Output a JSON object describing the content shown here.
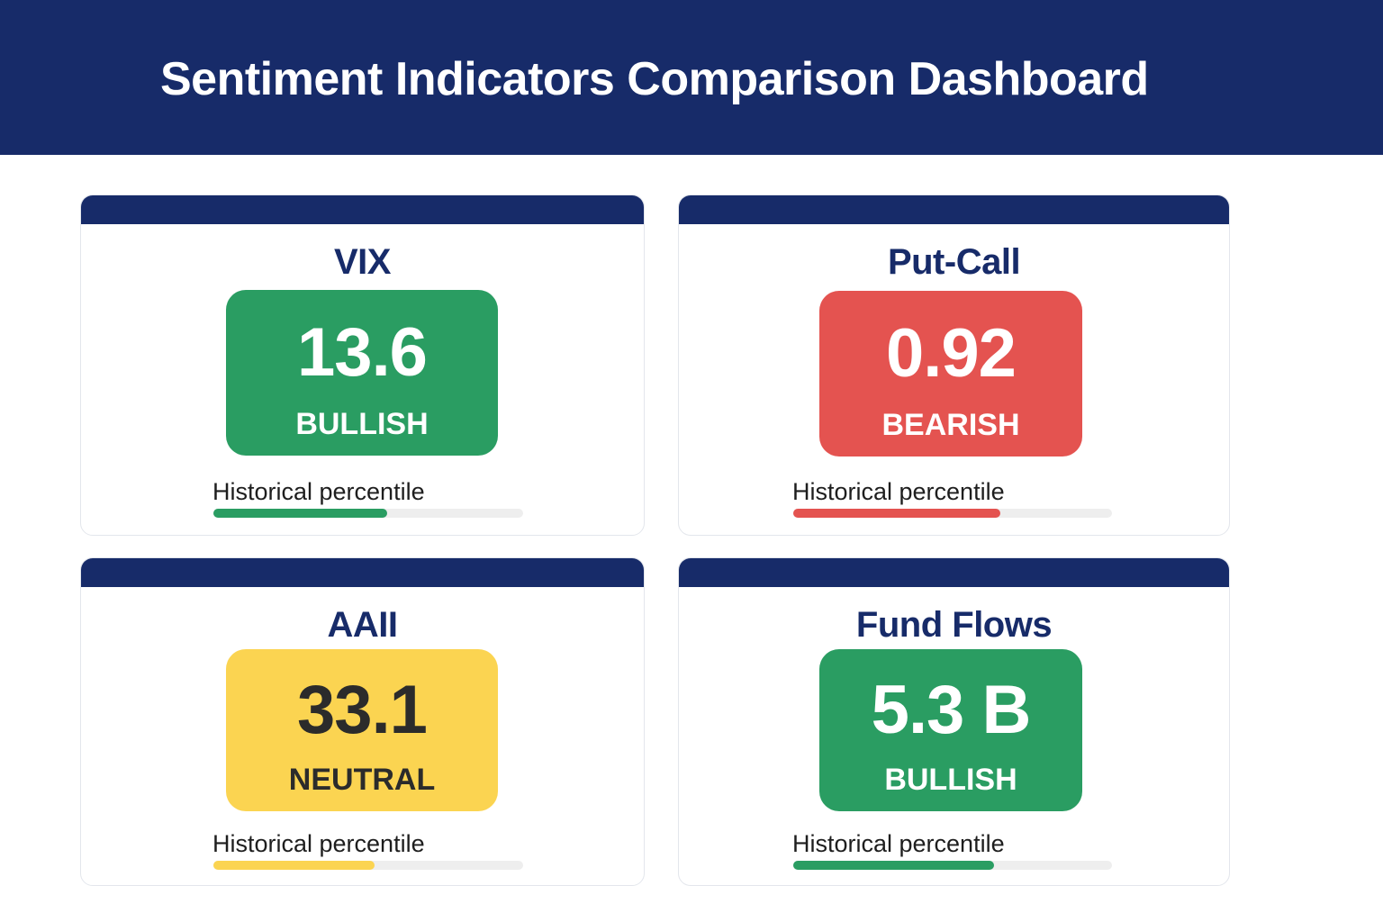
{
  "header": {
    "title": "Sentiment Indicators Comparison Dashboard"
  },
  "cards": [
    {
      "title": "VIX",
      "value": "13.6",
      "status": "BULLISH",
      "percentile_label": "Historical percentile",
      "percentile": 0.56,
      "color": "#2a9d62",
      "text_color": "#ffffff"
    },
    {
      "title": "Put-Call",
      "value": "0.92",
      "status": "BEARISH",
      "percentile_label": "Historical percentile",
      "percentile": 0.65,
      "color": "#e45350",
      "text_color": "#ffffff"
    },
    {
      "title": "AAII",
      "value": "33.1",
      "status": "NEUTRAL",
      "percentile_label": "Historical percentile",
      "percentile": 0.52,
      "color": "#fbd451",
      "text_color": "#2b2b2b"
    },
    {
      "title": "Fund Flows",
      "value": "5.3 B",
      "status": "BULLISH",
      "percentile_label": "Historical percentile",
      "percentile": 0.63,
      "color": "#2a9d62",
      "text_color": "#ffffff"
    }
  ]
}
